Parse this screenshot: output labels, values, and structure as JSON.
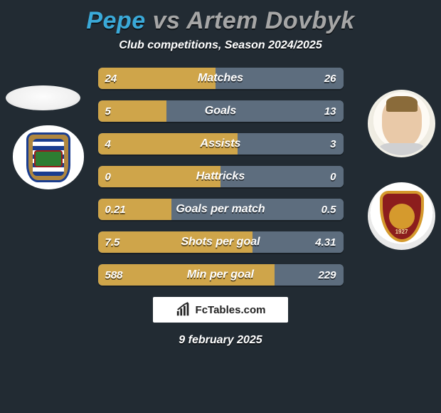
{
  "colors": {
    "background": "#222b33",
    "player1": "#3aa9d8",
    "player2": "#a6a6a6",
    "bar_left": "#cfa54a",
    "bar_right": "#5d6d7e",
    "bar_track": "#6f8293",
    "brand_bg": "#ffffff"
  },
  "title": {
    "player1": "Pepe",
    "vs": " vs ",
    "player2": "Artem Dovbyk",
    "fontsize": 34
  },
  "subtitle": "Club competitions, Season 2024/2025",
  "row_style": {
    "height": 30,
    "radius": 6,
    "gap": 16,
    "font_size_value": 15,
    "font_size_label": 16
  },
  "rows": [
    {
      "label": "Matches",
      "left": "24",
      "right": "26",
      "left_pct": 48,
      "right_pct": 52
    },
    {
      "label": "Goals",
      "left": "5",
      "right": "13",
      "left_pct": 28,
      "right_pct": 72
    },
    {
      "label": "Assists",
      "left": "4",
      "right": "3",
      "left_pct": 57,
      "right_pct": 43
    },
    {
      "label": "Hattricks",
      "left": "0",
      "right": "0",
      "left_pct": 50,
      "right_pct": 50
    },
    {
      "label": "Goals per match",
      "left": "0.21",
      "right": "0.5",
      "left_pct": 30,
      "right_pct": 70
    },
    {
      "label": "Shots per goal",
      "left": "7.5",
      "right": "4.31",
      "left_pct": 63,
      "right_pct": 37
    },
    {
      "label": "Min per goal",
      "left": "588",
      "right": "229",
      "left_pct": 72,
      "right_pct": 28
    }
  ],
  "brand": "FcTables.com",
  "date": "9 february 2025",
  "badges": {
    "left_club": "FC Porto",
    "right_club": "AS Roma",
    "roma_year": "1927"
  }
}
